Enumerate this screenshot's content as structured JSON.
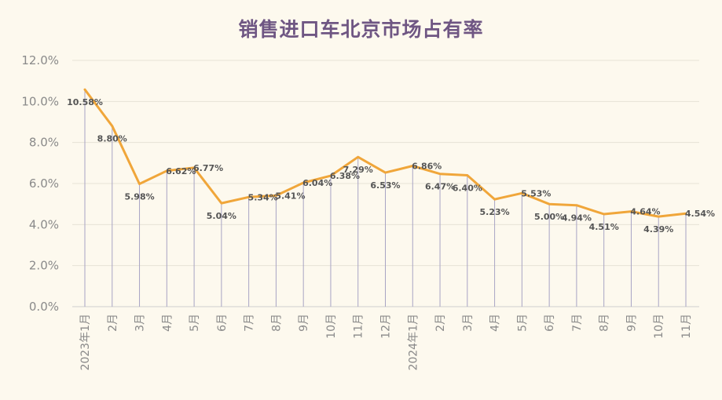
{
  "chart_data": {
    "type": "line",
    "title": "销售进口车北京市场占有率",
    "xlabel": "",
    "ylabel": "",
    "ylim": [
      0,
      12
    ],
    "yticks": [
      "0.0%",
      "2.0%",
      "4.0%",
      "6.0%",
      "8.0%",
      "10.0%",
      "12.0%"
    ],
    "grid": true,
    "legend": "none",
    "line_color": "#f0a63a",
    "drop_line_color": "#a8a4c4",
    "categories": [
      "2023年1月",
      "2月",
      "3月",
      "4月",
      "5月",
      "6月",
      "7月",
      "8月",
      "9月",
      "10月",
      "11月",
      "12月",
      "2024年1月",
      "2月",
      "3月",
      "4月",
      "5月",
      "6月",
      "7月",
      "8月",
      "9月",
      "10月",
      "11月"
    ],
    "series": [
      {
        "values": [
          10.58,
          8.8,
          5.98,
          6.62,
          6.77,
          5.04,
          5.34,
          5.41,
          6.04,
          6.38,
          7.29,
          6.53,
          6.86,
          6.47,
          6.4,
          5.23,
          5.53,
          5.0,
          4.94,
          4.51,
          4.64,
          4.39,
          4.54
        ],
        "labels": [
          "10.58%",
          "8.80%",
          "5.98%",
          "6.62%",
          "6.77%",
          "5.04%",
          "5.34%",
          "5.41%",
          "6.04%",
          "6.38%",
          "7.29%",
          "6.53%",
          "6.86%",
          "6.47%",
          "6.40%",
          "5.23%",
          "5.53%",
          "5.00%",
          "4.94%",
          "4.51%",
          "4.64%",
          "4.39%",
          "4.54%"
        ]
      }
    ]
  }
}
